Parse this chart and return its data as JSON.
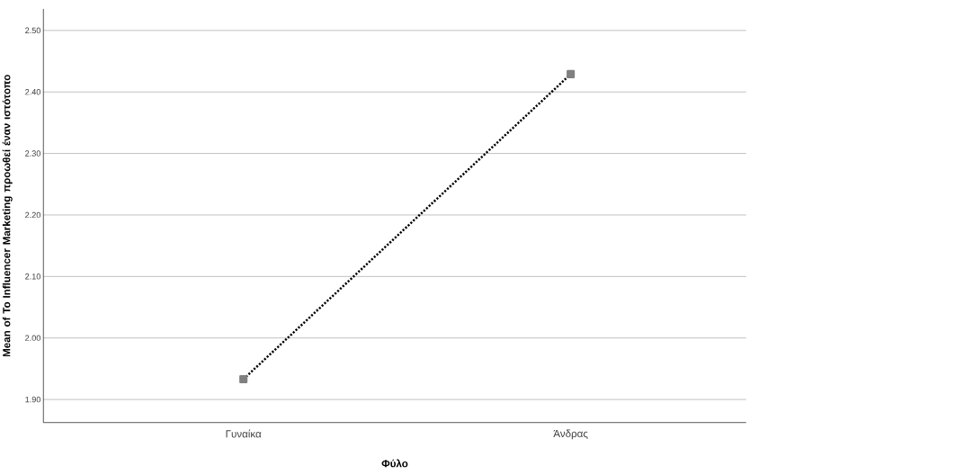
{
  "chart_data": {
    "type": "line",
    "xlabel": "Φύλο",
    "ylabel": "Mean of To Influencer Marketing προωθεί έναν ιστότοπο",
    "categories": [
      "Γυναίκα",
      "Άνδρας"
    ],
    "values": [
      1.933,
      2.429
    ],
    "color": "#000000",
    "marker": "square",
    "line_style": "dotted",
    "ylim": [
      1.8625,
      2.535
    ],
    "yticks": [
      {
        "value": 1.9,
        "label": "1.90"
      },
      {
        "value": 2.0,
        "label": "2.00"
      },
      {
        "value": 2.1,
        "label": "2.10"
      },
      {
        "value": 2.2,
        "label": "2.20"
      },
      {
        "value": 2.3,
        "label": "2.30"
      },
      {
        "value": 2.4,
        "label": "2.40"
      },
      {
        "value": 2.5,
        "label": "2.50"
      }
    ],
    "grid": "y"
  }
}
